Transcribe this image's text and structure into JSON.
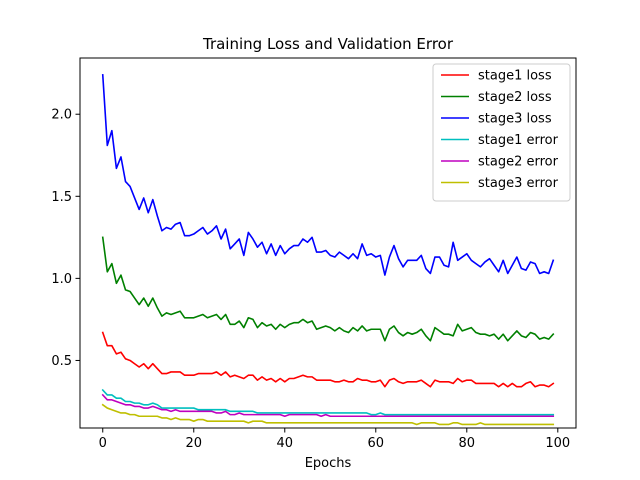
{
  "chart_data": {
    "type": "line",
    "title": "Training Loss and Validation Error",
    "xlabel": "Epochs",
    "ylabel": "",
    "xlim": [
      -5,
      104
    ],
    "ylim": [
      0.0885,
      2.3425
    ],
    "x_ticks": [
      0,
      20,
      40,
      60,
      80,
      100
    ],
    "y_ticks": [
      0.5,
      1.0,
      1.5,
      2.0
    ],
    "x_tick_labels": [
      "0",
      "20",
      "40",
      "60",
      "80",
      "100"
    ],
    "y_tick_labels": [
      "0.5",
      "1.0",
      "1.5",
      "2.0"
    ],
    "grid": false,
    "legend": "top-right",
    "x": [
      0,
      1,
      2,
      3,
      4,
      5,
      6,
      7,
      8,
      9,
      10,
      11,
      12,
      13,
      14,
      15,
      16,
      17,
      18,
      19,
      20,
      21,
      22,
      23,
      24,
      25,
      26,
      27,
      28,
      29,
      30,
      31,
      32,
      33,
      34,
      35,
      36,
      37,
      38,
      39,
      40,
      41,
      42,
      43,
      44,
      45,
      46,
      47,
      48,
      49,
      50,
      51,
      52,
      53,
      54,
      55,
      56,
      57,
      58,
      59,
      60,
      61,
      62,
      63,
      64,
      65,
      66,
      67,
      68,
      69,
      70,
      71,
      72,
      73,
      74,
      75,
      76,
      77,
      78,
      79,
      80,
      81,
      82,
      83,
      84,
      85,
      86,
      87,
      88,
      89,
      90,
      91,
      92,
      93,
      94,
      95,
      96,
      97,
      98,
      99
    ],
    "series": [
      {
        "name": "stage1 loss",
        "color": "#ff0000",
        "values": [
          0.67,
          0.59,
          0.59,
          0.54,
          0.55,
          0.51,
          0.5,
          0.48,
          0.46,
          0.48,
          0.45,
          0.48,
          0.45,
          0.42,
          0.42,
          0.43,
          0.43,
          0.43,
          0.41,
          0.41,
          0.41,
          0.42,
          0.42,
          0.42,
          0.42,
          0.43,
          0.41,
          0.43,
          0.4,
          0.41,
          0.4,
          0.39,
          0.41,
          0.41,
          0.38,
          0.4,
          0.38,
          0.39,
          0.37,
          0.39,
          0.37,
          0.39,
          0.39,
          0.4,
          0.41,
          0.4,
          0.4,
          0.38,
          0.38,
          0.38,
          0.38,
          0.37,
          0.37,
          0.38,
          0.37,
          0.37,
          0.39,
          0.38,
          0.38,
          0.37,
          0.37,
          0.38,
          0.34,
          0.38,
          0.39,
          0.37,
          0.36,
          0.37,
          0.37,
          0.37,
          0.38,
          0.36,
          0.34,
          0.38,
          0.37,
          0.37,
          0.37,
          0.36,
          0.39,
          0.37,
          0.38,
          0.38,
          0.36,
          0.36,
          0.36,
          0.36,
          0.36,
          0.34,
          0.36,
          0.34,
          0.36,
          0.34,
          0.34,
          0.36,
          0.37,
          0.34,
          0.35,
          0.35,
          0.34,
          0.36
        ]
      },
      {
        "name": "stage2 loss",
        "color": "#008000",
        "values": [
          1.25,
          1.04,
          1.09,
          0.97,
          1.02,
          0.93,
          0.92,
          0.88,
          0.84,
          0.88,
          0.83,
          0.88,
          0.82,
          0.77,
          0.79,
          0.78,
          0.79,
          0.8,
          0.76,
          0.76,
          0.76,
          0.77,
          0.78,
          0.76,
          0.77,
          0.78,
          0.75,
          0.78,
          0.72,
          0.72,
          0.74,
          0.7,
          0.76,
          0.75,
          0.7,
          0.73,
          0.71,
          0.72,
          0.69,
          0.72,
          0.7,
          0.72,
          0.73,
          0.73,
          0.75,
          0.73,
          0.74,
          0.69,
          0.7,
          0.71,
          0.7,
          0.68,
          0.7,
          0.68,
          0.67,
          0.7,
          0.68,
          0.71,
          0.68,
          0.69,
          0.69,
          0.69,
          0.62,
          0.69,
          0.71,
          0.67,
          0.65,
          0.67,
          0.66,
          0.67,
          0.69,
          0.65,
          0.62,
          0.7,
          0.68,
          0.66,
          0.66,
          0.65,
          0.72,
          0.68,
          0.69,
          0.7,
          0.67,
          0.66,
          0.66,
          0.65,
          0.66,
          0.63,
          0.66,
          0.62,
          0.65,
          0.68,
          0.65,
          0.64,
          0.67,
          0.66,
          0.63,
          0.64,
          0.63,
          0.66
        ]
      },
      {
        "name": "stage3 loss",
        "color": "#0000ff",
        "values": [
          2.24,
          1.81,
          1.9,
          1.67,
          1.74,
          1.59,
          1.56,
          1.49,
          1.42,
          1.49,
          1.4,
          1.48,
          1.38,
          1.29,
          1.31,
          1.3,
          1.33,
          1.34,
          1.26,
          1.26,
          1.27,
          1.29,
          1.31,
          1.27,
          1.29,
          1.32,
          1.24,
          1.3,
          1.18,
          1.21,
          1.24,
          1.14,
          1.28,
          1.24,
          1.19,
          1.22,
          1.15,
          1.21,
          1.14,
          1.2,
          1.15,
          1.18,
          1.2,
          1.2,
          1.24,
          1.22,
          1.25,
          1.16,
          1.16,
          1.17,
          1.14,
          1.13,
          1.16,
          1.14,
          1.12,
          1.15,
          1.12,
          1.21,
          1.14,
          1.15,
          1.13,
          1.14,
          1.02,
          1.13,
          1.2,
          1.12,
          1.07,
          1.11,
          1.11,
          1.11,
          1.14,
          1.06,
          1.03,
          1.13,
          1.13,
          1.08,
          1.07,
          1.22,
          1.11,
          1.13,
          1.15,
          1.11,
          1.09,
          1.07,
          1.1,
          1.12,
          1.08,
          1.04,
          1.11,
          1.03,
          1.08,
          1.13,
          1.06,
          1.05,
          1.1,
          1.09,
          1.03,
          1.04,
          1.03,
          1.11
        ]
      },
      {
        "name": "stage1 error",
        "color": "#00bfbf",
        "values": [
          0.32,
          0.29,
          0.29,
          0.27,
          0.27,
          0.25,
          0.25,
          0.24,
          0.24,
          0.23,
          0.23,
          0.24,
          0.23,
          0.21,
          0.21,
          0.21,
          0.21,
          0.21,
          0.21,
          0.21,
          0.21,
          0.2,
          0.2,
          0.2,
          0.2,
          0.2,
          0.2,
          0.2,
          0.19,
          0.19,
          0.19,
          0.19,
          0.19,
          0.19,
          0.18,
          0.18,
          0.18,
          0.18,
          0.18,
          0.18,
          0.18,
          0.18,
          0.18,
          0.18,
          0.18,
          0.18,
          0.18,
          0.18,
          0.18,
          0.18,
          0.18,
          0.18,
          0.18,
          0.18,
          0.18,
          0.18,
          0.18,
          0.18,
          0.18,
          0.17,
          0.17,
          0.18,
          0.17,
          0.17,
          0.17,
          0.17,
          0.17,
          0.17,
          0.17,
          0.17,
          0.17,
          0.17,
          0.17,
          0.17,
          0.17,
          0.17,
          0.17,
          0.17,
          0.17,
          0.17,
          0.17,
          0.17,
          0.17,
          0.17,
          0.17,
          0.17,
          0.17,
          0.17,
          0.17,
          0.17,
          0.17,
          0.17,
          0.17,
          0.17,
          0.17,
          0.17,
          0.17,
          0.17,
          0.17,
          0.17
        ]
      },
      {
        "name": "stage2 error",
        "color": "#bf00bf",
        "values": [
          0.29,
          0.26,
          0.26,
          0.25,
          0.24,
          0.23,
          0.23,
          0.22,
          0.22,
          0.21,
          0.21,
          0.22,
          0.21,
          0.2,
          0.2,
          0.19,
          0.2,
          0.19,
          0.19,
          0.19,
          0.19,
          0.19,
          0.19,
          0.19,
          0.19,
          0.18,
          0.18,
          0.19,
          0.17,
          0.17,
          0.18,
          0.17,
          0.17,
          0.17,
          0.17,
          0.17,
          0.17,
          0.17,
          0.17,
          0.17,
          0.16,
          0.17,
          0.17,
          0.17,
          0.17,
          0.17,
          0.17,
          0.17,
          0.16,
          0.17,
          0.16,
          0.16,
          0.16,
          0.16,
          0.16,
          0.16,
          0.16,
          0.16,
          0.16,
          0.16,
          0.16,
          0.16,
          0.16,
          0.16,
          0.16,
          0.16,
          0.16,
          0.16,
          0.16,
          0.16,
          0.16,
          0.16,
          0.16,
          0.16,
          0.16,
          0.16,
          0.16,
          0.16,
          0.16,
          0.16,
          0.16,
          0.16,
          0.16,
          0.16,
          0.16,
          0.16,
          0.16,
          0.16,
          0.16,
          0.16,
          0.16,
          0.16,
          0.16,
          0.16,
          0.16,
          0.16,
          0.16,
          0.16,
          0.16,
          0.16
        ]
      },
      {
        "name": "stage3 error",
        "color": "#bfbf00",
        "values": [
          0.23,
          0.21,
          0.2,
          0.19,
          0.18,
          0.18,
          0.17,
          0.17,
          0.16,
          0.16,
          0.16,
          0.16,
          0.16,
          0.15,
          0.15,
          0.14,
          0.15,
          0.14,
          0.14,
          0.14,
          0.13,
          0.14,
          0.14,
          0.13,
          0.13,
          0.13,
          0.13,
          0.13,
          0.13,
          0.13,
          0.13,
          0.13,
          0.12,
          0.13,
          0.13,
          0.13,
          0.12,
          0.12,
          0.12,
          0.12,
          0.12,
          0.12,
          0.12,
          0.12,
          0.12,
          0.12,
          0.12,
          0.12,
          0.12,
          0.12,
          0.12,
          0.12,
          0.12,
          0.12,
          0.12,
          0.12,
          0.12,
          0.12,
          0.12,
          0.12,
          0.12,
          0.12,
          0.12,
          0.12,
          0.12,
          0.12,
          0.12,
          0.12,
          0.12,
          0.11,
          0.12,
          0.12,
          0.12,
          0.12,
          0.11,
          0.11,
          0.11,
          0.12,
          0.12,
          0.11,
          0.11,
          0.11,
          0.11,
          0.12,
          0.11,
          0.11,
          0.11,
          0.11,
          0.11,
          0.11,
          0.11,
          0.11,
          0.11,
          0.11,
          0.11,
          0.11,
          0.11,
          0.11,
          0.11,
          0.11
        ]
      }
    ]
  }
}
